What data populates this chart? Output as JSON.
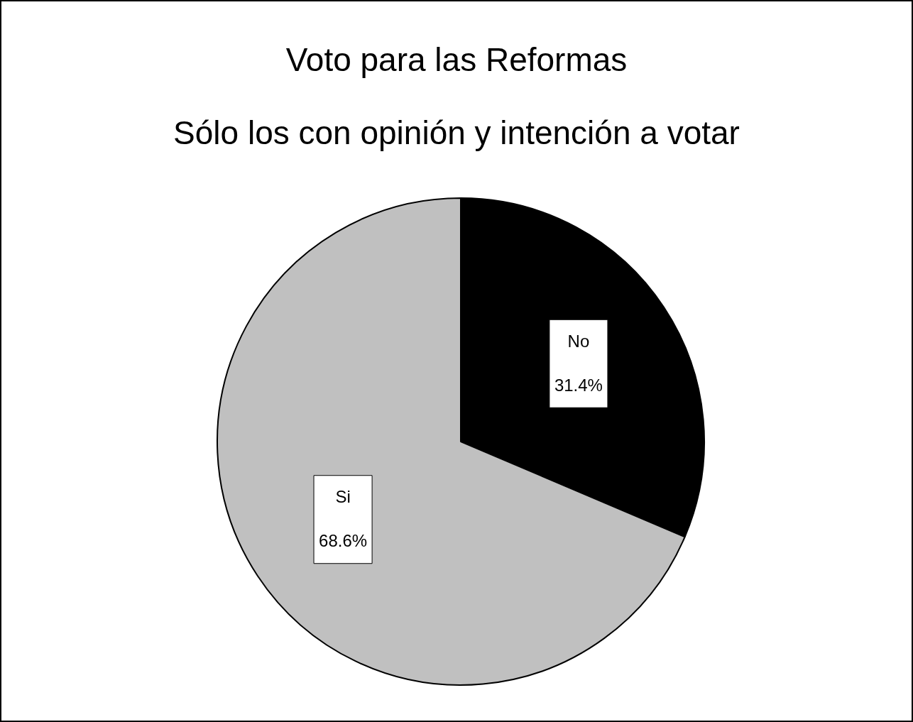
{
  "chart_data": {
    "type": "pie",
    "title": "Voto para las Reformas",
    "subtitle": "Sólo los con opinión y intención a votar",
    "categories": [
      "No",
      "Si"
    ],
    "values": [
      31.4,
      68.6
    ],
    "colors": [
      "#000000",
      "#c0c0c0"
    ],
    "value_labels": [
      "31.4%",
      "68.6%"
    ],
    "legend": false
  }
}
